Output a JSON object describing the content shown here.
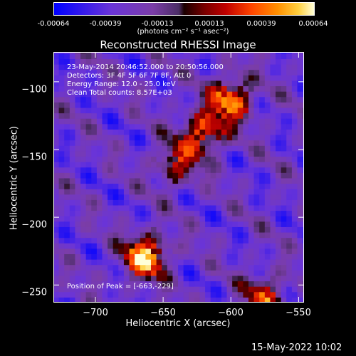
{
  "colorbar": {
    "ticks": [
      "-0.00064",
      "-0.00039",
      "-0.00013",
      "0.00013",
      "0.00039",
      "0.00064"
    ],
    "unit": "(photons cm⁻² s⁻¹ asec⁻²)"
  },
  "info": {
    "line1": "23-May-2014 20:46:52.000 to 20:50:56.000",
    "line2": "Detectors: 3F 4F 5F 6F 7F 8F, Att 0",
    "line3": "Energy Range: 12.0 - 25.0 keV",
    "line4": "Clean     Total counts: 8.57E+03"
  },
  "peak_label": "Position of Peak = [-663,-229]",
  "footer": "15-May-2022 10:02",
  "chart_data": {
    "type": "heatmap",
    "title": "Reconstructed RHESSI Image",
    "xlabel": "Heliocentric X (arcsec)",
    "ylabel": "Heliocentric Y (arcsec)",
    "xlim": [
      -731,
      -546
    ],
    "ylim": [
      -263,
      -78
    ],
    "xticks": [
      -700,
      -650,
      -600,
      -550
    ],
    "yticks": [
      -100,
      -150,
      -200,
      -250
    ],
    "value_range": [
      -0.00064,
      0.00064
    ],
    "colormap": "blue-purple-black-red-yellow-white",
    "sources": [
      {
        "x": -663,
        "y": -229,
        "peak": 0.00064
      },
      {
        "x": -600,
        "y": -113,
        "peak": 0.00055
      },
      {
        "x": -620,
        "y": -137,
        "peak": 0.00048
      },
      {
        "x": -640,
        "y": -160,
        "peak": 0.00035
      },
      {
        "x": -575,
        "y": -258,
        "peak": 0.00038
      }
    ]
  }
}
